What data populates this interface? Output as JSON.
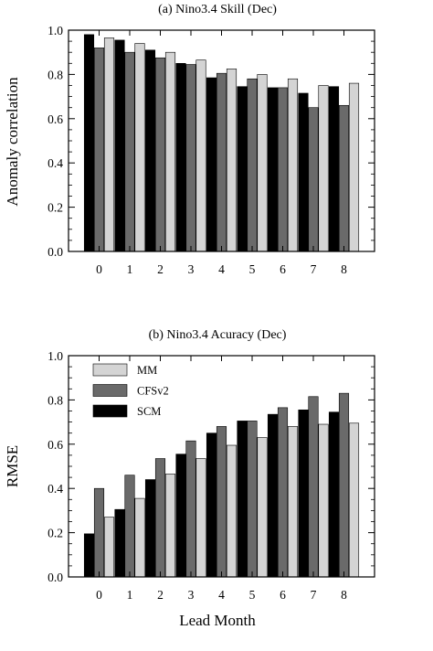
{
  "colors": {
    "SCM": "#000000",
    "CFSv2": "#6a6a6a",
    "MM": "#d4d4d4",
    "axis": "#000000"
  },
  "chart_data": [
    {
      "type": "bar",
      "title": "(a) Nino3.4 Skill (Dec)",
      "xlabel": "",
      "ylabel": "Anomaly correlation",
      "categories": [
        "0",
        "1",
        "2",
        "3",
        "4",
        "5",
        "6",
        "7",
        "8"
      ],
      "ylim": [
        0,
        1.0
      ],
      "yticks": [
        "0.0",
        "0.2",
        "0.4",
        "0.6",
        "0.8",
        "1.0"
      ],
      "grid": false,
      "legend": null,
      "series": [
        {
          "name": "SCM",
          "values": [
            0.98,
            0.955,
            0.91,
            0.85,
            0.785,
            0.745,
            0.74,
            0.715,
            0.745
          ]
        },
        {
          "name": "CFSv2",
          "values": [
            0.92,
            0.9,
            0.875,
            0.845,
            0.805,
            0.78,
            0.74,
            0.65,
            0.66
          ]
        },
        {
          "name": "MM",
          "values": [
            0.965,
            0.94,
            0.9,
            0.865,
            0.825,
            0.8,
            0.78,
            0.75,
            0.76
          ]
        }
      ]
    },
    {
      "type": "bar",
      "title": "(b) Nino3.4 Acuracy (Dec)",
      "xlabel": "Lead Month",
      "ylabel": "RMSE",
      "categories": [
        "0",
        "1",
        "2",
        "3",
        "4",
        "5",
        "6",
        "7",
        "8"
      ],
      "ylim": [
        0,
        1.0
      ],
      "yticks": [
        "0.0",
        "0.2",
        "0.4",
        "0.6",
        "0.8",
        "1.0"
      ],
      "grid": false,
      "legend": {
        "position": "top-left",
        "entries": [
          "MM",
          "CFSv2",
          "SCM"
        ]
      },
      "series": [
        {
          "name": "SCM",
          "values": [
            0.195,
            0.305,
            0.44,
            0.555,
            0.65,
            0.705,
            0.735,
            0.755,
            0.745
          ]
        },
        {
          "name": "CFSv2",
          "values": [
            0.4,
            0.46,
            0.535,
            0.615,
            0.68,
            0.705,
            0.765,
            0.815,
            0.83
          ]
        },
        {
          "name": "MM",
          "values": [
            0.27,
            0.355,
            0.465,
            0.535,
            0.595,
            0.63,
            0.68,
            0.69,
            0.695
          ]
        }
      ]
    }
  ]
}
